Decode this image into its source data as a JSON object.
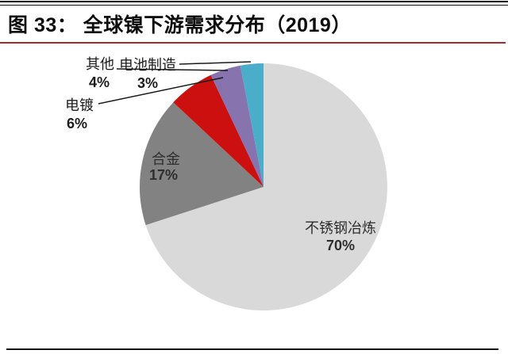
{
  "figure": {
    "title": "图 33：  全球镍下游需求分布（2019）"
  },
  "chart_data": {
    "type": "pie",
    "title": "全球镍下游需求分布（2019）",
    "unit": "%",
    "start_angle_deg": 0,
    "direction": "clockwise",
    "legend": "none",
    "segments": [
      {
        "label": "不锈钢冶炼",
        "value": 70,
        "pct_label": "70%",
        "color": "#d9d9d9",
        "label_placement": "inside"
      },
      {
        "label": "合金",
        "value": 17,
        "pct_label": "17%",
        "color": "#828282",
        "label_placement": "inside"
      },
      {
        "label": "电镀",
        "value": 6,
        "pct_label": "6%",
        "color": "#cc1010",
        "label_placement": "outside"
      },
      {
        "label": "其他",
        "value": 4,
        "pct_label": "4%",
        "color": "#8774ae",
        "label_placement": "outside"
      },
      {
        "label": "电池制造",
        "value": 3,
        "pct_label": "3%",
        "color": "#4aadc9",
        "label_placement": "outside"
      }
    ]
  },
  "styles": {
    "title_rule_color": "#a02c2c",
    "border_line_color": "#161616",
    "label_text_color": "#1c1c1c"
  }
}
